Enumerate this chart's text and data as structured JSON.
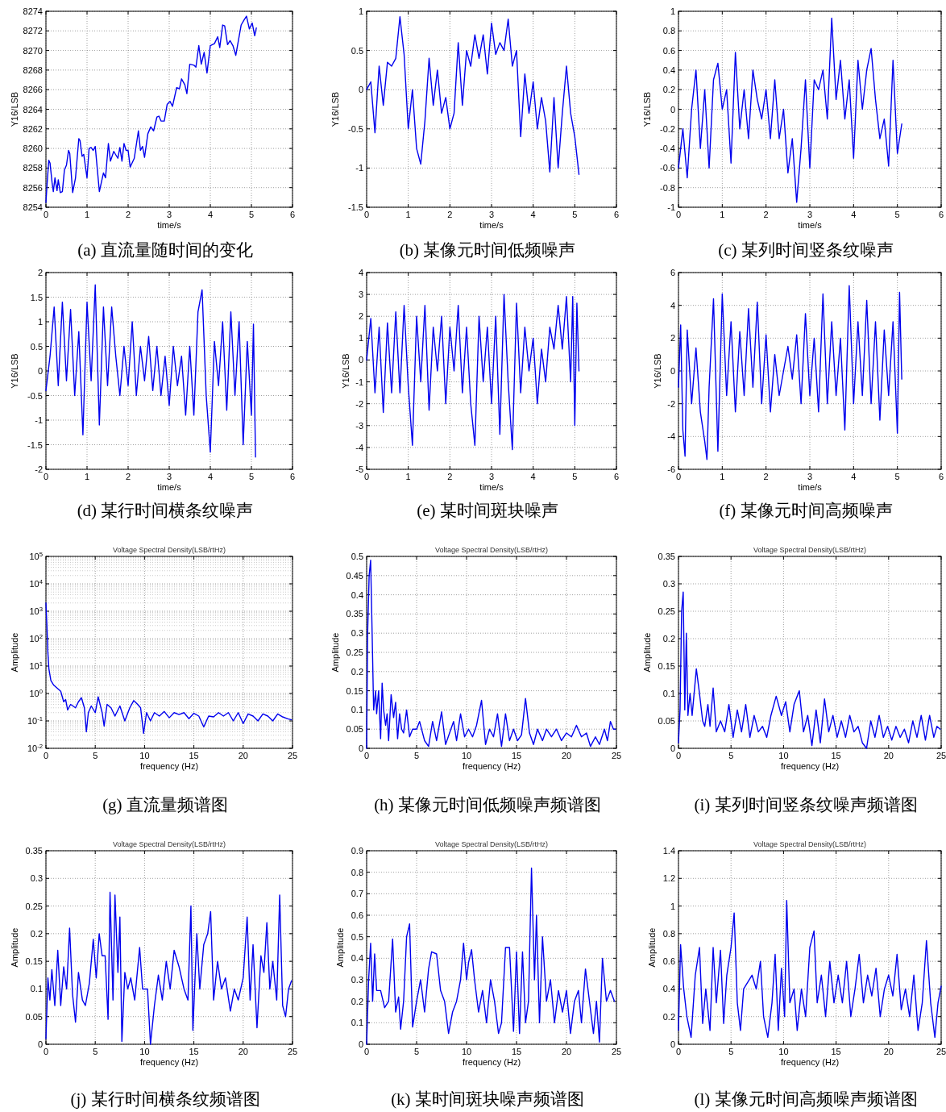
{
  "chart_data": [
    {
      "type": "line",
      "xlabel": "time/s",
      "ylabel": "Y16/LSB",
      "xlim": [
        0,
        6
      ],
      "xticks": [
        0,
        1,
        2,
        3,
        4,
        5,
        6
      ],
      "ylim": [
        8254,
        8274
      ],
      "yticks": [
        8254,
        8256,
        8258,
        8260,
        8262,
        8264,
        8266,
        8268,
        8270,
        8272,
        8274
      ],
      "grid": true,
      "annotations": [
        "(a) 直流量随时间的变化"
      ],
      "series": [
        {
          "color": "#0000ee",
          "x": [
            0,
            0.03,
            0.07,
            0.1,
            0.15,
            0.18,
            0.22,
            0.27,
            0.3,
            0.35,
            0.4,
            0.45,
            0.5,
            0.55,
            0.58,
            0.65,
            0.72,
            0.8,
            0.83,
            0.88,
            0.92,
            1.0,
            1.05,
            1.1,
            1.15,
            1.2,
            1.3,
            1.4,
            1.45,
            1.52,
            1.57,
            1.65,
            1.75,
            1.8,
            1.85,
            1.9,
            1.95,
            2.0,
            2.05,
            2.15,
            2.25,
            2.3,
            2.35,
            2.4,
            2.48,
            2.55,
            2.62,
            2.7,
            2.75,
            2.8,
            2.88,
            2.95,
            3.02,
            3.08,
            3.18,
            3.25,
            3.3,
            3.38,
            3.43,
            3.5,
            3.6,
            3.65,
            3.72,
            3.78,
            3.85,
            3.92,
            4.0,
            4.1,
            4.18,
            4.23,
            4.3,
            4.35,
            4.42,
            4.48,
            4.55,
            4.62,
            4.75,
            4.82,
            4.88,
            4.95,
            5.02,
            5.08,
            5.12
          ],
          "values": [
            8254.5,
            8256.5,
            8258.8,
            8258.5,
            8256.5,
            8255.6,
            8257,
            8255.7,
            8256.8,
            8255.5,
            8255.6,
            8257.8,
            8258.3,
            8259.8,
            8259.5,
            8255.5,
            8257,
            8261,
            8260.8,
            8259.2,
            8259.4,
            8257,
            8260,
            8260.1,
            8259.8,
            8260.2,
            8255.6,
            8257.5,
            8257,
            8260.5,
            8258.7,
            8259.7,
            8259,
            8260.1,
            8258.7,
            8260.5,
            8259.8,
            8259.8,
            8258.1,
            8259,
            8261.8,
            8259.8,
            8260.2,
            8259.1,
            8261.5,
            8262.2,
            8261.8,
            8263.2,
            8263.3,
            8262.8,
            8262.8,
            8264.5,
            8264.8,
            8264.3,
            8266.2,
            8266.1,
            8267.1,
            8266.5,
            8265.6,
            8268.6,
            8268.5,
            8268.3,
            8270.5,
            8268.6,
            8269.8,
            8267.7,
            8270.5,
            8270.7,
            8271.4,
            8270.3,
            8272.6,
            8272.5,
            8270.6,
            8271,
            8270.5,
            8269.5,
            8272.6,
            8273.1,
            8273.5,
            8272.2,
            8272.8,
            8271.5,
            8272.3
          ]
        }
      ]
    },
    {
      "type": "line",
      "xlabel": "time/s",
      "ylabel": "Y16/LSB",
      "xlim": [
        0,
        6
      ],
      "xticks": [
        0,
        1,
        2,
        3,
        4,
        5,
        6
      ],
      "ylim": [
        -1.5,
        1
      ],
      "yticks": [
        -1.5,
        -1,
        -0.5,
        0,
        0.5,
        1
      ],
      "grid": true,
      "annotations": [
        "(b) 某像元时间低频噪声"
      ],
      "series": [
        {
          "color": "#0000ee",
          "x": [
            0,
            0.1,
            0.2,
            0.3,
            0.4,
            0.5,
            0.6,
            0.7,
            0.8,
            0.9,
            1,
            1.1,
            1.2,
            1.3,
            1.4,
            1.5,
            1.6,
            1.7,
            1.8,
            1.9,
            2,
            2.1,
            2.2,
            2.3,
            2.4,
            2.5,
            2.6,
            2.7,
            2.8,
            2.9,
            3,
            3.1,
            3.2,
            3.3,
            3.4,
            3.5,
            3.6,
            3.7,
            3.8,
            3.9,
            4,
            4.1,
            4.2,
            4.3,
            4.4,
            4.5,
            4.6,
            4.7,
            4.8,
            4.9,
            5,
            5.1
          ],
          "values": [
            0,
            0.1,
            -0.55,
            0.3,
            -0.2,
            0.35,
            0.3,
            0.4,
            0.93,
            0.45,
            -0.5,
            0,
            -0.75,
            -0.95,
            -0.4,
            0.4,
            -0.2,
            0.25,
            -0.3,
            -0.1,
            -0.5,
            -0.3,
            0.6,
            -0.2,
            0.5,
            0.3,
            0.7,
            0.4,
            0.7,
            0.2,
            0.85,
            0.45,
            0.6,
            0.5,
            0.9,
            0.3,
            0.5,
            -0.6,
            0.2,
            -0.3,
            0.1,
            -0.5,
            -0.1,
            -0.4,
            -1.05,
            -0.1,
            -1.0,
            -0.3,
            0.3,
            -0.3,
            -0.6,
            -1.08
          ]
        }
      ]
    },
    {
      "type": "line",
      "xlabel": "time/s",
      "ylabel": "Y16/LSB",
      "xlim": [
        0,
        6
      ],
      "xticks": [
        0,
        1,
        2,
        3,
        4,
        5,
        6
      ],
      "ylim": [
        -1,
        1
      ],
      "yticks": [
        -1,
        -0.8,
        -0.6,
        -0.4,
        -0.2,
        0,
        0.2,
        0.4,
        0.6,
        0.8,
        1
      ],
      "grid": true,
      "annotations": [
        "(c) 某列时间竖条纹噪声"
      ],
      "series": [
        {
          "color": "#0000ee",
          "x": [
            0,
            0.1,
            0.2,
            0.3,
            0.4,
            0.5,
            0.6,
            0.7,
            0.8,
            0.9,
            1,
            1.1,
            1.2,
            1.3,
            1.4,
            1.5,
            1.6,
            1.7,
            1.8,
            1.9,
            2,
            2.1,
            2.2,
            2.3,
            2.4,
            2.5,
            2.6,
            2.7,
            2.8,
            2.9,
            3,
            3.1,
            3.2,
            3.3,
            3.4,
            3.5,
            3.6,
            3.7,
            3.8,
            3.9,
            4,
            4.1,
            4.2,
            4.3,
            4.4,
            4.5,
            4.6,
            4.7,
            4.8,
            4.9,
            5,
            5.1
          ],
          "values": [
            -0.6,
            -0.2,
            -0.7,
            0,
            0.4,
            -0.4,
            0.2,
            -0.6,
            0.3,
            0.47,
            0,
            0.2,
            -0.55,
            0.58,
            -0.2,
            0.2,
            -0.3,
            0.4,
            0.1,
            -0.1,
            0.2,
            -0.3,
            0.3,
            -0.3,
            0,
            -0.65,
            -0.3,
            -0.95,
            -0.4,
            0.3,
            -0.6,
            0.3,
            0.2,
            0.4,
            -0.1,
            0.93,
            0.1,
            0.5,
            -0.1,
            0.3,
            -0.5,
            0.5,
            0,
            0.4,
            0.62,
            0.1,
            -0.3,
            -0.1,
            -0.58,
            0.5,
            -0.45,
            -0.15
          ]
        }
      ]
    },
    {
      "type": "line",
      "xlabel": "time/s",
      "ylabel": "Y16/LSB",
      "xlim": [
        0,
        6
      ],
      "xticks": [
        0,
        1,
        2,
        3,
        4,
        5,
        6
      ],
      "ylim": [
        -2,
        2
      ],
      "yticks": [
        -2,
        -1.5,
        -1,
        -0.5,
        0,
        0.5,
        1,
        1.5,
        2
      ],
      "grid": true,
      "annotations": [
        "(d) 某行时间横条纹噪声"
      ],
      "series": [
        {
          "color": "#0000ee",
          "x": [
            0,
            0.1,
            0.2,
            0.3,
            0.4,
            0.5,
            0.6,
            0.7,
            0.8,
            0.9,
            1,
            1.1,
            1.2,
            1.3,
            1.4,
            1.5,
            1.6,
            1.7,
            1.8,
            1.9,
            2,
            2.1,
            2.2,
            2.3,
            2.4,
            2.5,
            2.6,
            2.7,
            2.8,
            2.9,
            3,
            3.1,
            3.2,
            3.3,
            3.4,
            3.5,
            3.6,
            3.7,
            3.8,
            3.9,
            4,
            4.1,
            4.2,
            4.3,
            4.4,
            4.5,
            4.6,
            4.7,
            4.8,
            4.9,
            5,
            5.05,
            5.1
          ],
          "values": [
            -0.4,
            0.3,
            1.3,
            -0.3,
            1.4,
            -0.2,
            1.25,
            -0.5,
            0.8,
            -1.3,
            1.4,
            -0.2,
            1.75,
            -1.1,
            1.3,
            -0.3,
            1.3,
            0.3,
            -0.5,
            0.5,
            -0.3,
            1.0,
            -0.5,
            0.5,
            -0.2,
            0.7,
            -0.4,
            0.5,
            -0.5,
            0.3,
            -0.7,
            0.5,
            -0.3,
            0.3,
            -0.9,
            0.5,
            -0.9,
            1.2,
            1.65,
            -0.5,
            -1.65,
            0.6,
            -0.3,
            1.0,
            -0.8,
            1.2,
            -0.5,
            1.0,
            -1.5,
            0.6,
            -0.9,
            0.95,
            -1.75
          ]
        }
      ]
    },
    {
      "type": "line",
      "xlabel": "time/s",
      "ylabel": "Y16/LSB",
      "xlim": [
        0,
        6
      ],
      "xticks": [
        0,
        1,
        2,
        3,
        4,
        5,
        6
      ],
      "ylim": [
        -5,
        4
      ],
      "yticks": [
        -5,
        -4,
        -3,
        -2,
        -1,
        0,
        1,
        2,
        3,
        4
      ],
      "grid": true,
      "annotations": [
        "(e) 某时间斑块噪声"
      ],
      "series": [
        {
          "color": "#0000ee",
          "x": [
            0,
            0.1,
            0.2,
            0.3,
            0.4,
            0.5,
            0.6,
            0.7,
            0.8,
            0.9,
            1,
            1.1,
            1.2,
            1.3,
            1.4,
            1.5,
            1.6,
            1.7,
            1.8,
            1.9,
            2,
            2.1,
            2.2,
            2.3,
            2.4,
            2.5,
            2.6,
            2.7,
            2.8,
            2.9,
            3,
            3.1,
            3.2,
            3.3,
            3.4,
            3.5,
            3.6,
            3.7,
            3.8,
            3.9,
            4,
            4.1,
            4.2,
            4.3,
            4.4,
            4.5,
            4.6,
            4.7,
            4.8,
            4.9,
            4.95,
            5,
            5.05,
            5.1
          ],
          "values": [
            0,
            1.9,
            -1.5,
            1.5,
            -2.4,
            1.7,
            -1.5,
            2.2,
            -1.5,
            2.5,
            -1.2,
            -3.9,
            2.0,
            -1.0,
            2.5,
            -2.3,
            1.5,
            -0.5,
            2.0,
            -2.0,
            1.5,
            -0.5,
            2.5,
            -1.5,
            1.5,
            -2.0,
            -3.9,
            2.0,
            -1.0,
            1.5,
            -2.0,
            2.0,
            -3.4,
            3.0,
            -1.0,
            -4.1,
            2.6,
            -1.5,
            1.5,
            -0.5,
            1.0,
            -2.0,
            0.5,
            -1.0,
            1.5,
            0.5,
            2.5,
            0.5,
            2.9,
            -1.0,
            2.9,
            -3.0,
            2.6,
            -0.5
          ]
        }
      ]
    },
    {
      "type": "line",
      "xlabel": "time/s",
      "ylabel": "Y16/LSB",
      "xlim": [
        0,
        6
      ],
      "xticks": [
        0,
        1,
        2,
        3,
        4,
        5,
        6
      ],
      "ylim": [
        -6,
        6
      ],
      "yticks": [
        -6,
        -4,
        -2,
        0,
        2,
        4,
        6
      ],
      "grid": true,
      "annotations": [
        "(f) 某像元时间高频噪声"
      ],
      "series": [
        {
          "color": "#0000ee",
          "x": [
            0,
            0.05,
            0.1,
            0.15,
            0.2,
            0.3,
            0.4,
            0.5,
            0.6,
            0.65,
            0.7,
            0.8,
            0.9,
            1,
            1.1,
            1.2,
            1.3,
            1.4,
            1.5,
            1.6,
            1.7,
            1.8,
            1.9,
            2,
            2.1,
            2.2,
            2.3,
            2.4,
            2.5,
            2.6,
            2.7,
            2.8,
            2.9,
            3,
            3.1,
            3.2,
            3.3,
            3.4,
            3.5,
            3.6,
            3.7,
            3.8,
            3.9,
            4,
            4.1,
            4.2,
            4.3,
            4.4,
            4.5,
            4.6,
            4.7,
            4.8,
            4.9,
            5,
            5.05,
            5.1
          ],
          "values": [
            -1.0,
            2.8,
            -3.6,
            -5.2,
            2.5,
            -2.0,
            1.4,
            -2.5,
            -4.3,
            -5.4,
            -1.0,
            4.4,
            -4.9,
            4.7,
            -1.5,
            3.0,
            -2.5,
            2.4,
            -1.5,
            3.8,
            -1.0,
            4.2,
            -2.0,
            2.2,
            -2.5,
            1.0,
            -1.5,
            0,
            1.5,
            -0.5,
            2.2,
            -2.0,
            3.5,
            -1.5,
            2.0,
            -2.5,
            4.7,
            -2.0,
            3.0,
            -1.5,
            2.0,
            -3.6,
            5.2,
            -2.0,
            3.0,
            -1.5,
            4.3,
            -2.0,
            3.0,
            -3.0,
            2.5,
            -1.5,
            3.0,
            -3.8,
            4.8,
            -0.5
          ]
        }
      ]
    },
    {
      "type": "line",
      "title": "Voltage Spectral Density(LSB/rtHz)",
      "xlabel": "frequency (Hz)",
      "ylabel": "Amplitude",
      "xlim": [
        0,
        25
      ],
      "xticks": [
        0,
        5,
        10,
        15,
        20,
        25
      ],
      "log": "y",
      "ylim": [
        0.01,
        100000
      ],
      "yticks": [
        {
          "value": 0.01,
          "label": "10$^{-2}$"
        },
        {
          "value": 0.1,
          "label": "10$^{-1}$"
        },
        {
          "value": 1,
          "label": "10$^{0}$"
        },
        {
          "value": 10,
          "label": "10$^{1}$"
        },
        {
          "value": 100,
          "label": "10$^{2}$"
        },
        {
          "value": 1000,
          "label": "10$^{3}$"
        },
        {
          "value": 10000,
          "label": "10$^{4}$"
        },
        {
          "value": 100000,
          "label": "10$^{5}$"
        }
      ],
      "grid": true,
      "annotations": [
        "(g) 直流量频谱图"
      ],
      "series": [
        {
          "color": "#0000ee",
          "x": [
            0,
            0.1,
            0.2,
            0.3,
            0.5,
            0.8,
            1.2,
            1.5,
            1.8,
            2.0,
            2.2,
            2.5,
            3,
            3.3,
            3.6,
            3.9,
            4.1,
            4.3,
            4.6,
            5,
            5.3,
            5.7,
            5.9,
            6.2,
            6.6,
            7,
            7.5,
            8,
            8.5,
            8.9,
            9.3,
            9.6,
            9.9,
            10.2,
            10.6,
            11,
            11.5,
            12,
            12.5,
            13,
            13.5,
            14,
            14.5,
            15,
            15.5,
            16,
            16.5,
            17,
            17.5,
            18,
            18.5,
            19,
            19.5,
            20,
            20.5,
            21,
            21.5,
            22,
            22.5,
            23,
            23.5,
            24,
            24.5,
            24.9
          ],
          "values": [
            2000,
            300,
            30,
            8,
            3,
            2,
            1.5,
            1.2,
            0.5,
            0.6,
            0.25,
            0.4,
            0.3,
            0.5,
            0.7,
            0.3,
            0.04,
            0.2,
            0.35,
            0.2,
            0.75,
            0.2,
            0.065,
            0.4,
            0.3,
            0.15,
            0.35,
            0.1,
            0.3,
            0.55,
            0.4,
            0.3,
            0.035,
            0.2,
            0.1,
            0.2,
            0.15,
            0.22,
            0.13,
            0.2,
            0.17,
            0.2,
            0.12,
            0.19,
            0.15,
            0.06,
            0.15,
            0.14,
            0.2,
            0.15,
            0.2,
            0.1,
            0.2,
            0.08,
            0.18,
            0.15,
            0.1,
            0.18,
            0.15,
            0.1,
            0.18,
            0.14,
            0.12,
            0.11
          ]
        }
      ]
    },
    {
      "type": "line",
      "title": "Voltage Spectral Density(LSB/rtHz)",
      "xlabel": "frequency (Hz)",
      "ylabel": "Amplitude",
      "xlim": [
        0,
        25
      ],
      "xticks": [
        0,
        5,
        10,
        15,
        20,
        25
      ],
      "ylim": [
        0,
        0.5
      ],
      "yticks": [
        0,
        0.05,
        0.1,
        0.15,
        0.2,
        0.25,
        0.3,
        0.35,
        0.4,
        0.45,
        0.5
      ],
      "grid": true,
      "annotations": [
        "(h) 某像元时间低频噪声频谱图"
      ],
      "series": [
        {
          "color": "#0000ee",
          "x": [
            0,
            0.1,
            0.25,
            0.4,
            0.55,
            0.7,
            0.9,
            1.0,
            1.2,
            1.4,
            1.55,
            1.7,
            1.9,
            2.05,
            2.2,
            2.45,
            2.7,
            2.9,
            3.1,
            3.3,
            3.5,
            3.7,
            4.0,
            4.3,
            4.6,
            5.0,
            5.3,
            5.8,
            6.2,
            6.6,
            7.0,
            7.5,
            7.9,
            8.3,
            8.7,
            9.0,
            9.4,
            9.8,
            10.2,
            10.6,
            11.0,
            11.5,
            11.9,
            12.3,
            12.7,
            13.1,
            13.5,
            13.9,
            14.3,
            14.7,
            15.1,
            15.5,
            15.9,
            16.3,
            16.7,
            17.1,
            17.6,
            18,
            18.5,
            19,
            19.5,
            20,
            20.5,
            21,
            21.5,
            22,
            22.4,
            22.9,
            23.3,
            23.8,
            24.1,
            24.4,
            24.7,
            24.9
          ],
          "values": [
            0,
            0.3,
            0.45,
            0.49,
            0.3,
            0.1,
            0.15,
            0.09,
            0.15,
            0.025,
            0.17,
            0.1,
            0.06,
            0.09,
            0.02,
            0.14,
            0.08,
            0.12,
            0.025,
            0.09,
            0.05,
            0.04,
            0.1,
            0.03,
            0.05,
            0.05,
            0.07,
            0.02,
            0.005,
            0.07,
            0.02,
            0.095,
            0.01,
            0.04,
            0.07,
            0.02,
            0.09,
            0.03,
            0.05,
            0.03,
            0.06,
            0.125,
            0.01,
            0.05,
            0.03,
            0.09,
            0.005,
            0.09,
            0.02,
            0.05,
            0.02,
            0.035,
            0.13,
            0.04,
            0.01,
            0.05,
            0.02,
            0.05,
            0.03,
            0.05,
            0.02,
            0.04,
            0.03,
            0.06,
            0.03,
            0.04,
            0.005,
            0.03,
            0.01,
            0.05,
            0.02,
            0.07,
            0.05,
            0.05
          ]
        }
      ]
    },
    {
      "type": "line",
      "title": "Voltage Spectral Density(LSB/rtHz)",
      "xlabel": "frequency (Hz)",
      "ylabel": "Amplitude",
      "xlim": [
        0,
        25
      ],
      "xticks": [
        0,
        5,
        10,
        15,
        20,
        25
      ],
      "ylim": [
        0,
        0.35
      ],
      "yticks": [
        0,
        0.05,
        0.1,
        0.15,
        0.2,
        0.25,
        0.3,
        0.35
      ],
      "grid": true,
      "annotations": [
        "(i) 某列时间竖条纹噪声频谱图"
      ],
      "series": [
        {
          "color": "#0000ee",
          "x": [
            0,
            0.15,
            0.3,
            0.45,
            0.6,
            0.75,
            0.9,
            1.1,
            1.3,
            1.7,
            2.0,
            2.3,
            2.5,
            2.8,
            3.0,
            3.3,
            3.6,
            4.0,
            4.4,
            4.8,
            5.2,
            5.6,
            6.0,
            6.4,
            6.8,
            7.2,
            7.6,
            8.0,
            8.4,
            8.8,
            9.3,
            9.8,
            10.2,
            10.6,
            11.0,
            11.5,
            11.9,
            12.3,
            12.7,
            13.1,
            13.5,
            13.9,
            14.3,
            14.7,
            15.1,
            15.5,
            15.9,
            16.3,
            16.7,
            17.1,
            17.5,
            17.9,
            18.3,
            18.7,
            19.1,
            19.5,
            19.9,
            20.3,
            20.7,
            21.1,
            21.5,
            21.9,
            22.3,
            22.7,
            23.1,
            23.5,
            23.9,
            24.3,
            24.6,
            24.9
          ],
          "values": [
            0.01,
            0.07,
            0.25,
            0.285,
            0.07,
            0.21,
            0.06,
            0.1,
            0.06,
            0.145,
            0.1,
            0.05,
            0.04,
            0.08,
            0.04,
            0.11,
            0.03,
            0.05,
            0.03,
            0.08,
            0.02,
            0.07,
            0.03,
            0.08,
            0.02,
            0.06,
            0.03,
            0.04,
            0.02,
            0.06,
            0.095,
            0.06,
            0.085,
            0.03,
            0.08,
            0.105,
            0.03,
            0.06,
            0.005,
            0.07,
            0.01,
            0.09,
            0.03,
            0.06,
            0.02,
            0.05,
            0.02,
            0.06,
            0.03,
            0.04,
            0.01,
            0,
            0.05,
            0.02,
            0.06,
            0.02,
            0.04,
            0.015,
            0.04,
            0.02,
            0.035,
            0.01,
            0.05,
            0.02,
            0.06,
            0.015,
            0.06,
            0.02,
            0.04,
            0.035
          ]
        }
      ]
    },
    {
      "type": "line",
      "title": "Voltage Spectral Density(LSB/rtHz)",
      "xlabel": "frequency (Hz)",
      "ylabel": "Amplitude",
      "xlim": [
        0,
        25
      ],
      "xticks": [
        0,
        5,
        10,
        15,
        20,
        25
      ],
      "ylim": [
        0,
        0.35
      ],
      "yticks": [
        0,
        0.05,
        0.1,
        0.15,
        0.2,
        0.25,
        0.3,
        0.35
      ],
      "grid": true,
      "annotations": [
        "(j) 某行时间横条纹频谱图"
      ],
      "series": [
        {
          "color": "#0000ee",
          "x": [
            0,
            0.2,
            0.4,
            0.6,
            0.9,
            1.2,
            1.5,
            1.8,
            2.1,
            2.4,
            2.7,
            3.0,
            3.3,
            3.7,
            4.0,
            4.4,
            4.8,
            5.1,
            5.4,
            5.7,
            6.0,
            6.3,
            6.5,
            6.8,
            7.0,
            7.3,
            7.5,
            7.7,
            8.0,
            8.3,
            8.6,
            9.0,
            9.5,
            9.8,
            10.3,
            10.6,
            11.0,
            11.4,
            11.8,
            12.2,
            12.6,
            13.0,
            13.5,
            14.0,
            14.4,
            14.7,
            14.9,
            15.3,
            15.6,
            16.0,
            16.4,
            16.7,
            17.0,
            17.4,
            17.8,
            18.2,
            18.7,
            19.1,
            19.5,
            20.0,
            20.4,
            20.7,
            21.0,
            21.4,
            21.8,
            22.1,
            22.4,
            22.7,
            23.0,
            23.4,
            23.7,
            24.0,
            24.3,
            24.6,
            24.9
          ],
          "values": [
            0.01,
            0.12,
            0.08,
            0.135,
            0.07,
            0.17,
            0.07,
            0.14,
            0.1,
            0.21,
            0.09,
            0.04,
            0.13,
            0.08,
            0.07,
            0.11,
            0.19,
            0.12,
            0.2,
            0.16,
            0.16,
            0.045,
            0.275,
            0.08,
            0.27,
            0.13,
            0.23,
            0.005,
            0.13,
            0.1,
            0.12,
            0.08,
            0.175,
            0.1,
            0.1,
            0,
            0.07,
            0.125,
            0.08,
            0.15,
            0.1,
            0.17,
            0.14,
            0.1,
            0.08,
            0.25,
            0.025,
            0.2,
            0.1,
            0.18,
            0.2,
            0.24,
            0.08,
            0.15,
            0.1,
            0.12,
            0.06,
            0.1,
            0.08,
            0.12,
            0.23,
            0.08,
            0.18,
            0.03,
            0.16,
            0.13,
            0.22,
            0.1,
            0.15,
            0.08,
            0.27,
            0.07,
            0.05,
            0.1,
            0.115
          ]
        }
      ]
    },
    {
      "type": "line",
      "title": "Voltage Spectral Density(LSB/rtHz)",
      "xlabel": "frequency (Hz)",
      "ylabel": "Amplitude",
      "xlim": [
        0,
        25
      ],
      "xticks": [
        0,
        5,
        10,
        15,
        20,
        25
      ],
      "ylim": [
        0,
        0.9
      ],
      "yticks": [
        0,
        0.1,
        0.2,
        0.3,
        0.4,
        0.5,
        0.6,
        0.7,
        0.8,
        0.9
      ],
      "grid": true,
      "annotations": [
        "(k) 某时间斑块噪声频谱图"
      ],
      "series": [
        {
          "color": "#0000ee",
          "x": [
            0,
            0.2,
            0.4,
            0.6,
            0.8,
            1.0,
            1.4,
            1.8,
            2.2,
            2.6,
            2.9,
            3.2,
            3.4,
            3.7,
            4.0,
            4.3,
            4.6,
            5.0,
            5.4,
            5.8,
            6.2,
            6.5,
            7.0,
            7.4,
            7.8,
            8.2,
            8.6,
            9.0,
            9.4,
            9.7,
            10.0,
            10.2,
            10.5,
            10.8,
            11.2,
            11.6,
            12.0,
            12.4,
            12.8,
            13.2,
            13.5,
            13.9,
            14.3,
            14.7,
            15.0,
            15.3,
            15.6,
            15.9,
            16.2,
            16.5,
            16.8,
            17.0,
            17.3,
            17.6,
            18.0,
            18.4,
            18.8,
            19.2,
            19.6,
            20.0,
            20.4,
            20.8,
            21.2,
            21.5,
            21.9,
            22.3,
            22.7,
            23.0,
            23.3,
            23.6,
            24.0,
            24.4,
            24.8
          ],
          "values": [
            0,
            0.3,
            0.47,
            0.2,
            0.42,
            0.25,
            0.25,
            0.17,
            0.2,
            0.49,
            0.15,
            0.22,
            0.07,
            0.2,
            0.5,
            0.56,
            0.08,
            0.2,
            0.3,
            0.15,
            0.35,
            0.43,
            0.42,
            0.25,
            0.2,
            0.05,
            0.15,
            0.2,
            0.3,
            0.47,
            0.3,
            0.38,
            0.44,
            0.3,
            0.15,
            0.25,
            0.1,
            0.3,
            0.2,
            0.05,
            0.1,
            0.45,
            0.45,
            0.06,
            0.43,
            0.05,
            0.43,
            0.1,
            0.2,
            0.82,
            0.3,
            0.6,
            0.1,
            0.5,
            0.2,
            0.3,
            0.1,
            0.25,
            0.15,
            0.25,
            0.05,
            0.2,
            0.25,
            0.1,
            0.35,
            0.2,
            0.05,
            0.2,
            0.01,
            0.4,
            0.2,
            0.25,
            0.2
          ]
        }
      ]
    },
    {
      "type": "line",
      "title": "Voltage Spectral Density(LSB/rtHz)",
      "xlabel": "frequency (Hz)",
      "ylabel": "Amplitude",
      "xlim": [
        0,
        25
      ],
      "xticks": [
        0,
        5,
        10,
        15,
        20,
        25
      ],
      "ylim": [
        0,
        1.4
      ],
      "yticks": [
        0,
        0.2,
        0.4,
        0.6,
        0.8,
        1,
        1.2,
        1.4
      ],
      "grid": true,
      "annotations": [
        "(l) 某像元时间高频噪声频谱图"
      ],
      "series": [
        {
          "color": "#0000ee",
          "x": [
            0,
            0.2,
            0.5,
            0.8,
            1.2,
            1.6,
            2.0,
            2.3,
            2.6,
            3.0,
            3.3,
            3.6,
            4.0,
            4.3,
            4.6,
            5.0,
            5.3,
            5.6,
            5.9,
            6.2,
            6.6,
            7.0,
            7.4,
            7.8,
            8.1,
            8.5,
            8.9,
            9.2,
            9.5,
            9.8,
            10.1,
            10.3,
            10.6,
            11.0,
            11.3,
            11.7,
            12.1,
            12.5,
            12.9,
            13.2,
            13.6,
            14.0,
            14.4,
            14.8,
            15.2,
            15.6,
            16.0,
            16.4,
            16.8,
            17.2,
            17.6,
            18.0,
            18.4,
            18.8,
            19.2,
            19.6,
            20.0,
            20.4,
            20.8,
            21.2,
            21.6,
            22.0,
            22.4,
            22.8,
            23.2,
            23.6,
            24.0,
            24.4,
            24.7,
            25.0
          ],
          "values": [
            0.1,
            0.72,
            0.4,
            0.2,
            0.05,
            0.5,
            0.7,
            0.15,
            0.4,
            0.1,
            0.7,
            0.3,
            0.68,
            0.15,
            0.5,
            0.7,
            0.95,
            0.3,
            0.1,
            0.4,
            0.45,
            0.5,
            0.4,
            0.6,
            0.2,
            0.05,
            0.3,
            0.65,
            0.1,
            0.55,
            0.2,
            1.04,
            0.3,
            0.4,
            0.1,
            0.4,
            0.2,
            0.7,
            0.82,
            0.3,
            0.5,
            0.2,
            0.6,
            0.3,
            0.5,
            0.3,
            0.6,
            0.2,
            0.4,
            0.65,
            0.3,
            0.5,
            0.35,
            0.55,
            0.2,
            0.4,
            0.5,
            0.35,
            0.65,
            0.25,
            0.4,
            0.2,
            0.5,
            0.1,
            0.3,
            0.75,
            0.3,
            0.05,
            0.3,
            0.42
          ]
        }
      ]
    }
  ]
}
